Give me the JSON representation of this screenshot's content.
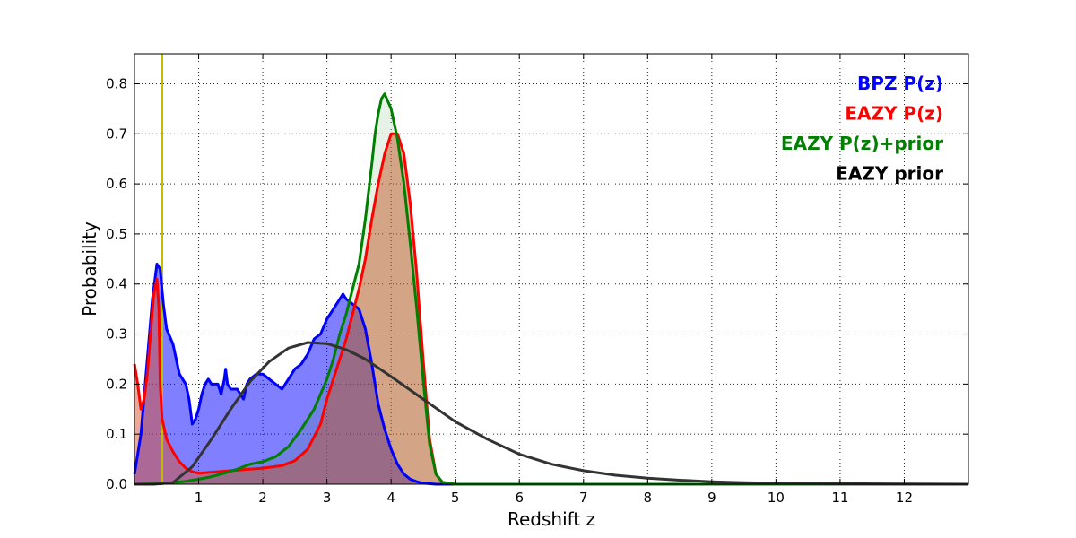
{
  "chart_data": {
    "type": "area",
    "xlabel": "Redshift z",
    "ylabel": "Probability",
    "xlim": [
      0,
      13
    ],
    "ylim": [
      0,
      0.86
    ],
    "x_ticks": [
      "1",
      "2",
      "3",
      "4",
      "5",
      "6",
      "7",
      "8",
      "9",
      "10",
      "11",
      "12"
    ],
    "y_ticks": [
      "0.0",
      "0.1",
      "0.2",
      "0.3",
      "0.4",
      "0.5",
      "0.6",
      "0.7",
      "0.8"
    ],
    "grid": true,
    "legend_placement": "top-right",
    "vertical_line": {
      "x": 0.43,
      "color": "#bfbf00"
    },
    "series": [
      {
        "name": "BPZ P(z)",
        "color": "#0000ff",
        "fill": "#0000ff",
        "fill_opacity": 0.5,
        "x": [
          0,
          0.1,
          0.2,
          0.28,
          0.35,
          0.4,
          0.45,
          0.5,
          0.6,
          0.7,
          0.8,
          0.85,
          0.9,
          0.95,
          1.0,
          1.05,
          1.1,
          1.15,
          1.2,
          1.3,
          1.35,
          1.4,
          1.42,
          1.45,
          1.5,
          1.6,
          1.7,
          1.75,
          1.8,
          1.9,
          2.0,
          2.1,
          2.2,
          2.3,
          2.4,
          2.5,
          2.6,
          2.7,
          2.8,
          2.9,
          3.0,
          3.1,
          3.2,
          3.25,
          3.3,
          3.4,
          3.5,
          3.6,
          3.7,
          3.8,
          3.9,
          4.0,
          4.1,
          4.2,
          4.3,
          4.4,
          4.5,
          4.6,
          4.7,
          4.8,
          5.0,
          13.0
        ],
        "y": [
          0.02,
          0.1,
          0.25,
          0.37,
          0.44,
          0.43,
          0.36,
          0.31,
          0.28,
          0.22,
          0.2,
          0.17,
          0.12,
          0.13,
          0.15,
          0.18,
          0.2,
          0.21,
          0.2,
          0.2,
          0.18,
          0.21,
          0.23,
          0.2,
          0.19,
          0.19,
          0.17,
          0.2,
          0.21,
          0.22,
          0.22,
          0.21,
          0.2,
          0.19,
          0.21,
          0.23,
          0.24,
          0.26,
          0.29,
          0.3,
          0.33,
          0.35,
          0.37,
          0.38,
          0.37,
          0.36,
          0.35,
          0.31,
          0.24,
          0.16,
          0.11,
          0.07,
          0.04,
          0.02,
          0.01,
          0.005,
          0.002,
          0.001,
          0.0,
          0.0,
          0.0,
          0.0
        ]
      },
      {
        "name": "EAZY P(z)",
        "color": "#ff0000",
        "fill": "#d9532f",
        "fill_opacity": 0.5,
        "x": [
          0,
          0.05,
          0.1,
          0.15,
          0.2,
          0.25,
          0.3,
          0.35,
          0.38,
          0.4,
          0.43,
          0.5,
          0.6,
          0.7,
          0.8,
          0.9,
          1.0,
          1.2,
          1.5,
          2.0,
          2.3,
          2.5,
          2.7,
          2.9,
          3.0,
          3.2,
          3.3,
          3.4,
          3.5,
          3.6,
          3.7,
          3.8,
          3.9,
          4.0,
          4.1,
          4.2,
          4.3,
          4.4,
          4.5,
          4.6,
          4.7,
          4.8,
          5.0,
          13.0
        ],
        "y": [
          0.24,
          0.2,
          0.15,
          0.17,
          0.22,
          0.3,
          0.38,
          0.41,
          0.35,
          0.2,
          0.13,
          0.09,
          0.065,
          0.045,
          0.032,
          0.025,
          0.022,
          0.024,
          0.027,
          0.032,
          0.037,
          0.047,
          0.07,
          0.12,
          0.17,
          0.25,
          0.29,
          0.34,
          0.39,
          0.45,
          0.53,
          0.6,
          0.66,
          0.7,
          0.7,
          0.66,
          0.56,
          0.42,
          0.25,
          0.09,
          0.02,
          0.004,
          0.0,
          0.0
        ]
      },
      {
        "name": "EAZY P(z)+prior",
        "color": "#007f00",
        "fill": "#007f00",
        "fill_opacity": 0.1,
        "x": [
          0,
          0.4,
          0.6,
          0.8,
          1.0,
          1.2,
          1.4,
          1.6,
          1.8,
          2.0,
          2.2,
          2.4,
          2.6,
          2.7,
          2.8,
          2.9,
          3.0,
          3.1,
          3.2,
          3.3,
          3.4,
          3.5,
          3.6,
          3.7,
          3.75,
          3.8,
          3.85,
          3.9,
          4.0,
          4.1,
          4.2,
          4.3,
          4.4,
          4.5,
          4.6,
          4.7,
          4.8,
          5.0,
          13.0
        ],
        "y": [
          0.0,
          0.001,
          0.003,
          0.006,
          0.01,
          0.015,
          0.022,
          0.03,
          0.04,
          0.045,
          0.055,
          0.075,
          0.11,
          0.13,
          0.15,
          0.18,
          0.21,
          0.25,
          0.3,
          0.34,
          0.39,
          0.44,
          0.53,
          0.64,
          0.7,
          0.74,
          0.77,
          0.78,
          0.75,
          0.69,
          0.6,
          0.48,
          0.35,
          0.21,
          0.08,
          0.02,
          0.004,
          0.0,
          0.0
        ]
      },
      {
        "name": "EAZY prior",
        "color": "#333333",
        "fill": "none",
        "fill_opacity": 0,
        "x": [
          0.0,
          0.3,
          0.6,
          0.9,
          1.2,
          1.5,
          1.8,
          2.1,
          2.4,
          2.7,
          3.0,
          3.3,
          3.6,
          4.0,
          4.5,
          5.0,
          5.5,
          6.0,
          6.5,
          7.0,
          7.5,
          8.0,
          8.5,
          9.0,
          9.5,
          10.0,
          11.0,
          12.0,
          13.0
        ],
        "y": [
          0.0,
          0.0,
          0.003,
          0.035,
          0.09,
          0.15,
          0.205,
          0.245,
          0.272,
          0.283,
          0.281,
          0.269,
          0.25,
          0.215,
          0.17,
          0.125,
          0.09,
          0.06,
          0.04,
          0.027,
          0.018,
          0.012,
          0.008,
          0.005,
          0.003,
          0.002,
          0.001,
          0.0005,
          0.0
        ]
      }
    ]
  }
}
